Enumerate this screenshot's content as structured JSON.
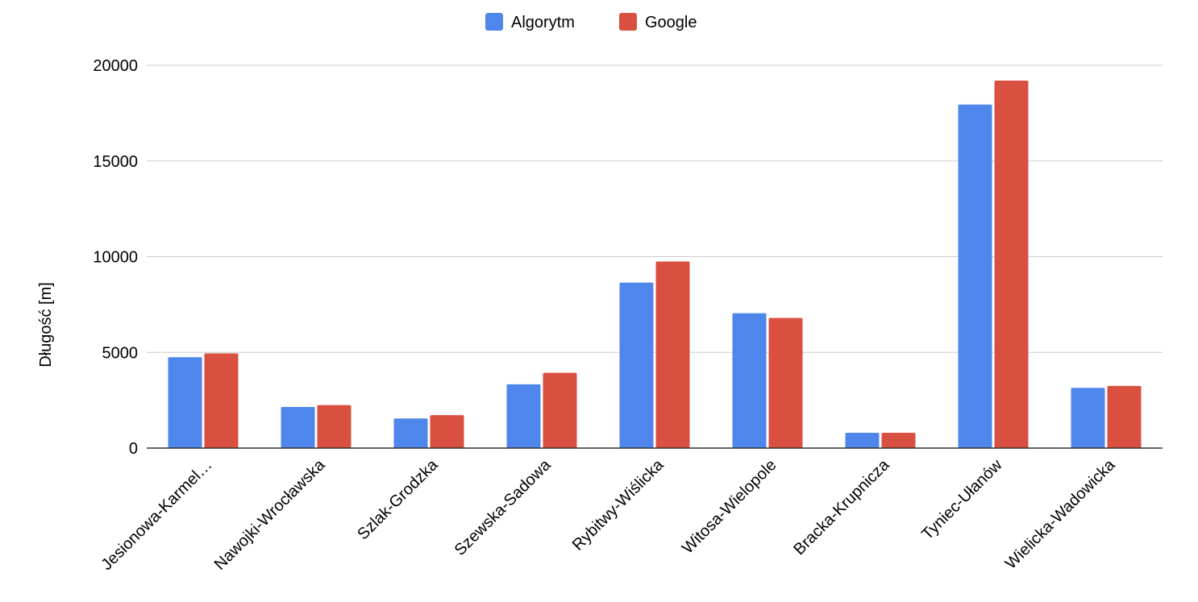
{
  "chart_data": {
    "type": "bar",
    "title": "",
    "xlabel": "",
    "ylabel": "Długość [m]",
    "ylim": [
      0,
      20000
    ],
    "yticks": [
      0,
      5000,
      10000,
      15000,
      20000
    ],
    "grid": true,
    "legend_position": "top-center",
    "categories": [
      "Jesionowa-Karmel…",
      "Nawojki-Wrocławska",
      "Szlak-Grodzka",
      "Szewska-Sadowa",
      "Rybitwy-Wiślicka",
      "Witosa-Wielopole",
      "Bracka-Krupnicza",
      "Tyniec-Ułanów",
      "Wielicka-Wadowicka"
    ],
    "series": [
      {
        "name": "Algorytm",
        "color": "#4f86ec",
        "values": [
          4750,
          2150,
          1550,
          3330,
          8650,
          7050,
          800,
          17950,
          3150
        ]
      },
      {
        "name": "Google",
        "color": "#d95040",
        "values": [
          4950,
          2250,
          1720,
          3930,
          9750,
          6800,
          800,
          19200,
          3250
        ]
      }
    ]
  }
}
